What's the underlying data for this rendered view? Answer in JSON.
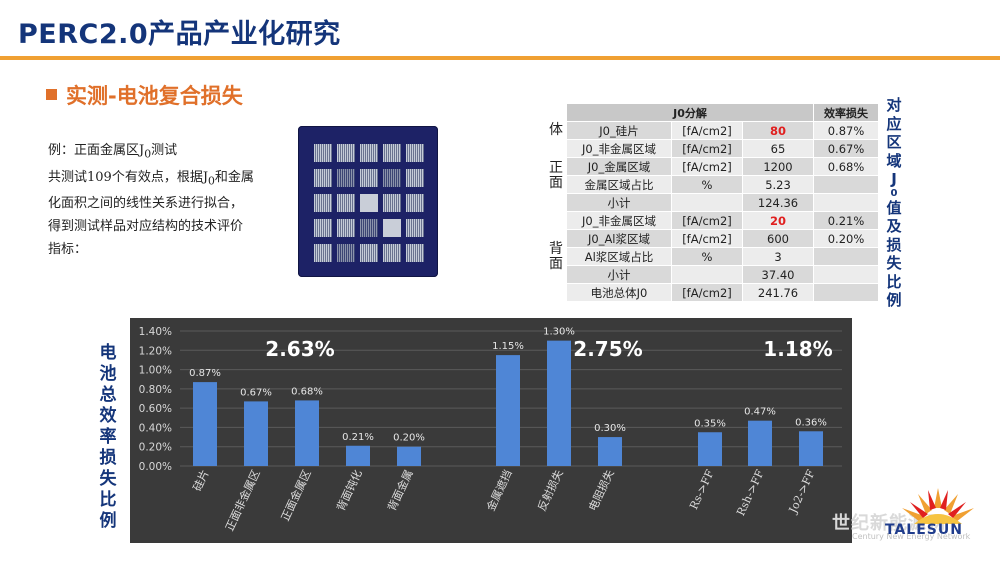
{
  "title": "PERC2.0产品产业化研究",
  "section_title": "实测-电池复合损失",
  "description": {
    "line1_prefix": "例：正面金属区J",
    "line1_sub": "0",
    "line1_suffix": "测试",
    "line2": "共测试109个有效点，根据J",
    "line2_sub": "0",
    "line2_suffix": "和金属",
    "line3": "化面积之间的线性关系进行拟合，",
    "line4": "得到测试样品对应结构的技术评价",
    "line5": "指标："
  },
  "j0_table": {
    "header": {
      "col1": "J0分解",
      "col4": "效率损失"
    },
    "side_labels": {
      "body": "体",
      "front": "正面",
      "rear": "背面"
    },
    "rows": [
      {
        "name": "J0_硅片",
        "unit": "[fA/cm2]",
        "value": "80",
        "loss": "0.87%"
      },
      {
        "name": "J0_非金属区域",
        "unit": "[fA/cm2]",
        "value": "65",
        "loss": "0.67%"
      },
      {
        "name": "J0_金属区域",
        "unit": "[fA/cm2]",
        "value": "1200",
        "loss": "0.68%"
      },
      {
        "name": "金属区域占比",
        "unit": "%",
        "value": "5.23",
        "loss": ""
      },
      {
        "name": "小计",
        "unit": "",
        "value": "124.36",
        "loss": ""
      },
      {
        "name": "J0_非金属区域",
        "unit": "[fA/cm2]",
        "value": "20",
        "loss": "0.21%"
      },
      {
        "name": "J0_Al浆区域",
        "unit": "[fA/cm2]",
        "value": "600",
        "loss": "0.20%"
      },
      {
        "name": "Al浆区域占比",
        "unit": "%",
        "value": "3",
        "loss": ""
      },
      {
        "name": "小计",
        "unit": "",
        "value": "37.40",
        "loss": ""
      },
      {
        "name": "电池总体J0",
        "unit": "[fA/cm2]",
        "value": "241.76",
        "loss": ""
      }
    ]
  },
  "right_vertical_label": "对应区域J0值及损失比例",
  "left_vertical_label": "电池总效率损失比例",
  "chart_data": {
    "type": "bar",
    "categories": [
      "硅片",
      "正面非金属区",
      "正面金属区",
      "背面钝化",
      "背面金属",
      "金属遮挡",
      "反射损失",
      "电阻损失",
      "Rs->FF",
      "Rsh->FF",
      "Jo2->FF"
    ],
    "values": [
      0.87,
      0.67,
      0.68,
      0.21,
      0.2,
      1.15,
      1.3,
      0.3,
      0.35,
      0.47,
      0.36
    ],
    "data_labels": [
      "0.87%",
      "0.67%",
      "0.68%",
      "0.21%",
      "0.20%",
      "1.15%",
      "1.30%",
      "0.30%",
      "0.35%",
      "0.47%",
      "0.36%"
    ],
    "y_ticks": [
      "0.00%",
      "0.20%",
      "0.40%",
      "0.60%",
      "0.80%",
      "1.00%",
      "1.20%",
      "1.40%"
    ],
    "ylim": [
      0,
      1.4
    ],
    "group_totals": [
      "2.63%",
      "2.75%",
      "1.18%"
    ],
    "bar_color": "#4f86d6",
    "background": "#3a3a3a",
    "grid": true
  },
  "logo": {
    "word": "TALESUN"
  },
  "watermark": {
    "text": "世纪新能源网",
    "sub": "Century New Energy Network"
  }
}
